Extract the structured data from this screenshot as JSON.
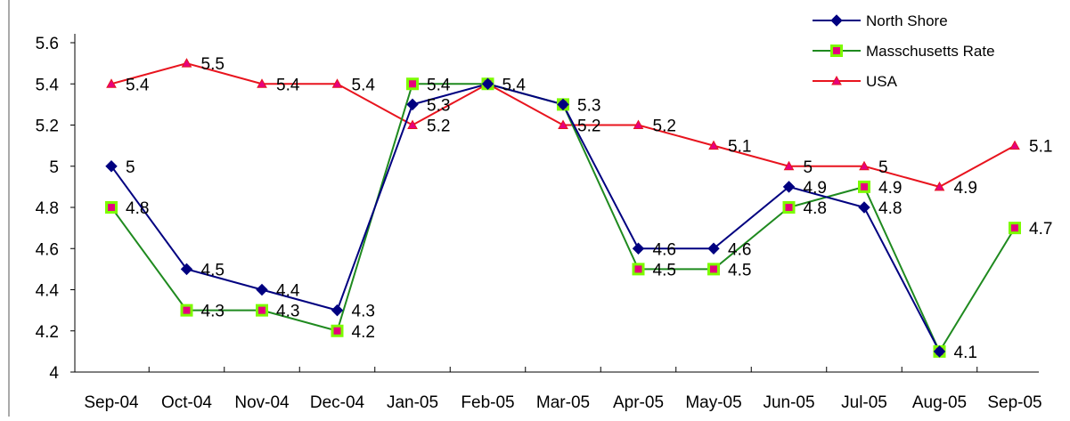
{
  "chart_data": {
    "type": "line",
    "title": "",
    "xlabel": "",
    "ylabel": "",
    "categories": [
      "Sep-04",
      "Oct-04",
      "Nov-04",
      "Dec-04",
      "Jan-05",
      "Feb-05",
      "Mar-05",
      "Apr-05",
      "May-05",
      "Jun-05",
      "Jul-05",
      "Aug-05",
      "Sep-05"
    ],
    "y_ticks": [
      "4",
      "4.2",
      "4.4",
      "4.6",
      "4.8",
      "5",
      "5.2",
      "5.4",
      "5.6"
    ],
    "ylim": [
      4,
      5.6
    ],
    "grid": false,
    "legend_position": "top-right",
    "series": [
      {
        "name": "North Shore",
        "color": "#000080",
        "marker": "diamond",
        "values": [
          5,
          4.5,
          4.4,
          4.3,
          5.3,
          5.4,
          5.3,
          4.6,
          4.6,
          4.9,
          4.8,
          4.1,
          null
        ],
        "labels": [
          "5",
          "4.5",
          "4.4",
          "4.3",
          "5.3",
          "",
          "5.3",
          "4.6",
          "4.6",
          "4.9",
          "4.8",
          "",
          ""
        ]
      },
      {
        "name": "Masschusetts Rate",
        "color": "#1f8a1f",
        "marker_fill": "#e6007e",
        "marker_edge": "#7cfc00",
        "marker": "square",
        "values": [
          4.8,
          4.3,
          4.3,
          4.2,
          5.4,
          5.4,
          5.3,
          4.5,
          4.5,
          4.8,
          4.9,
          4.1,
          4.7
        ],
        "labels": [
          "4.8",
          "4.3",
          "4.3",
          "4.2",
          "5.4",
          "",
          "",
          "4.5",
          "4.5",
          "4.8",
          "4.9",
          "4.1",
          "4.7"
        ]
      },
      {
        "name": "USA",
        "color": "#e8141e",
        "marker": "triangle",
        "values": [
          5.4,
          5.5,
          5.4,
          5.4,
          5.2,
          5.4,
          5.2,
          5.2,
          5.1,
          5,
          5,
          4.9,
          5.1
        ],
        "labels": [
          "5.4",
          "5.5",
          "5.4",
          "5.4",
          "5.2",
          "5.4",
          "5.2",
          "5.2",
          "5.1",
          "5",
          "5",
          "4.9",
          "5.1"
        ]
      }
    ]
  }
}
